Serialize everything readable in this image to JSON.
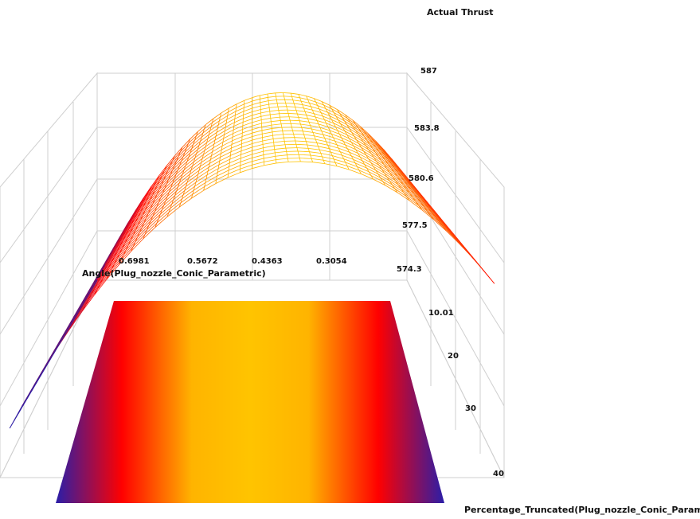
{
  "chart_data": {
    "type": "surface",
    "title": "Actual Thrust",
    "zlabel": "Actual Thrust",
    "xlabel": "Angle(Plug_nozzle_Conic_Parametric)",
    "ylabel": "Percentage_Truncated(Plug_nozzle_Conic_Parametric)",
    "x_ticks": [
      "0.6981",
      "0.5672",
      "0.4363",
      "0.3054"
    ],
    "y_ticks": [
      "10.01",
      "20",
      "30",
      "40"
    ],
    "z_ticks": [
      "574.3",
      "577.5",
      "580.6",
      "583.8",
      "587"
    ],
    "x_range": [
      0.17,
      0.83
    ],
    "y_range": [
      10.01,
      40
    ],
    "z_range": [
      571.1,
      587
    ],
    "z_peak": 585.5,
    "z_peak_at_x": 0.4363,
    "colormap": [
      "#2a1ea8",
      "#ff0000",
      "#ffc400"
    ]
  }
}
